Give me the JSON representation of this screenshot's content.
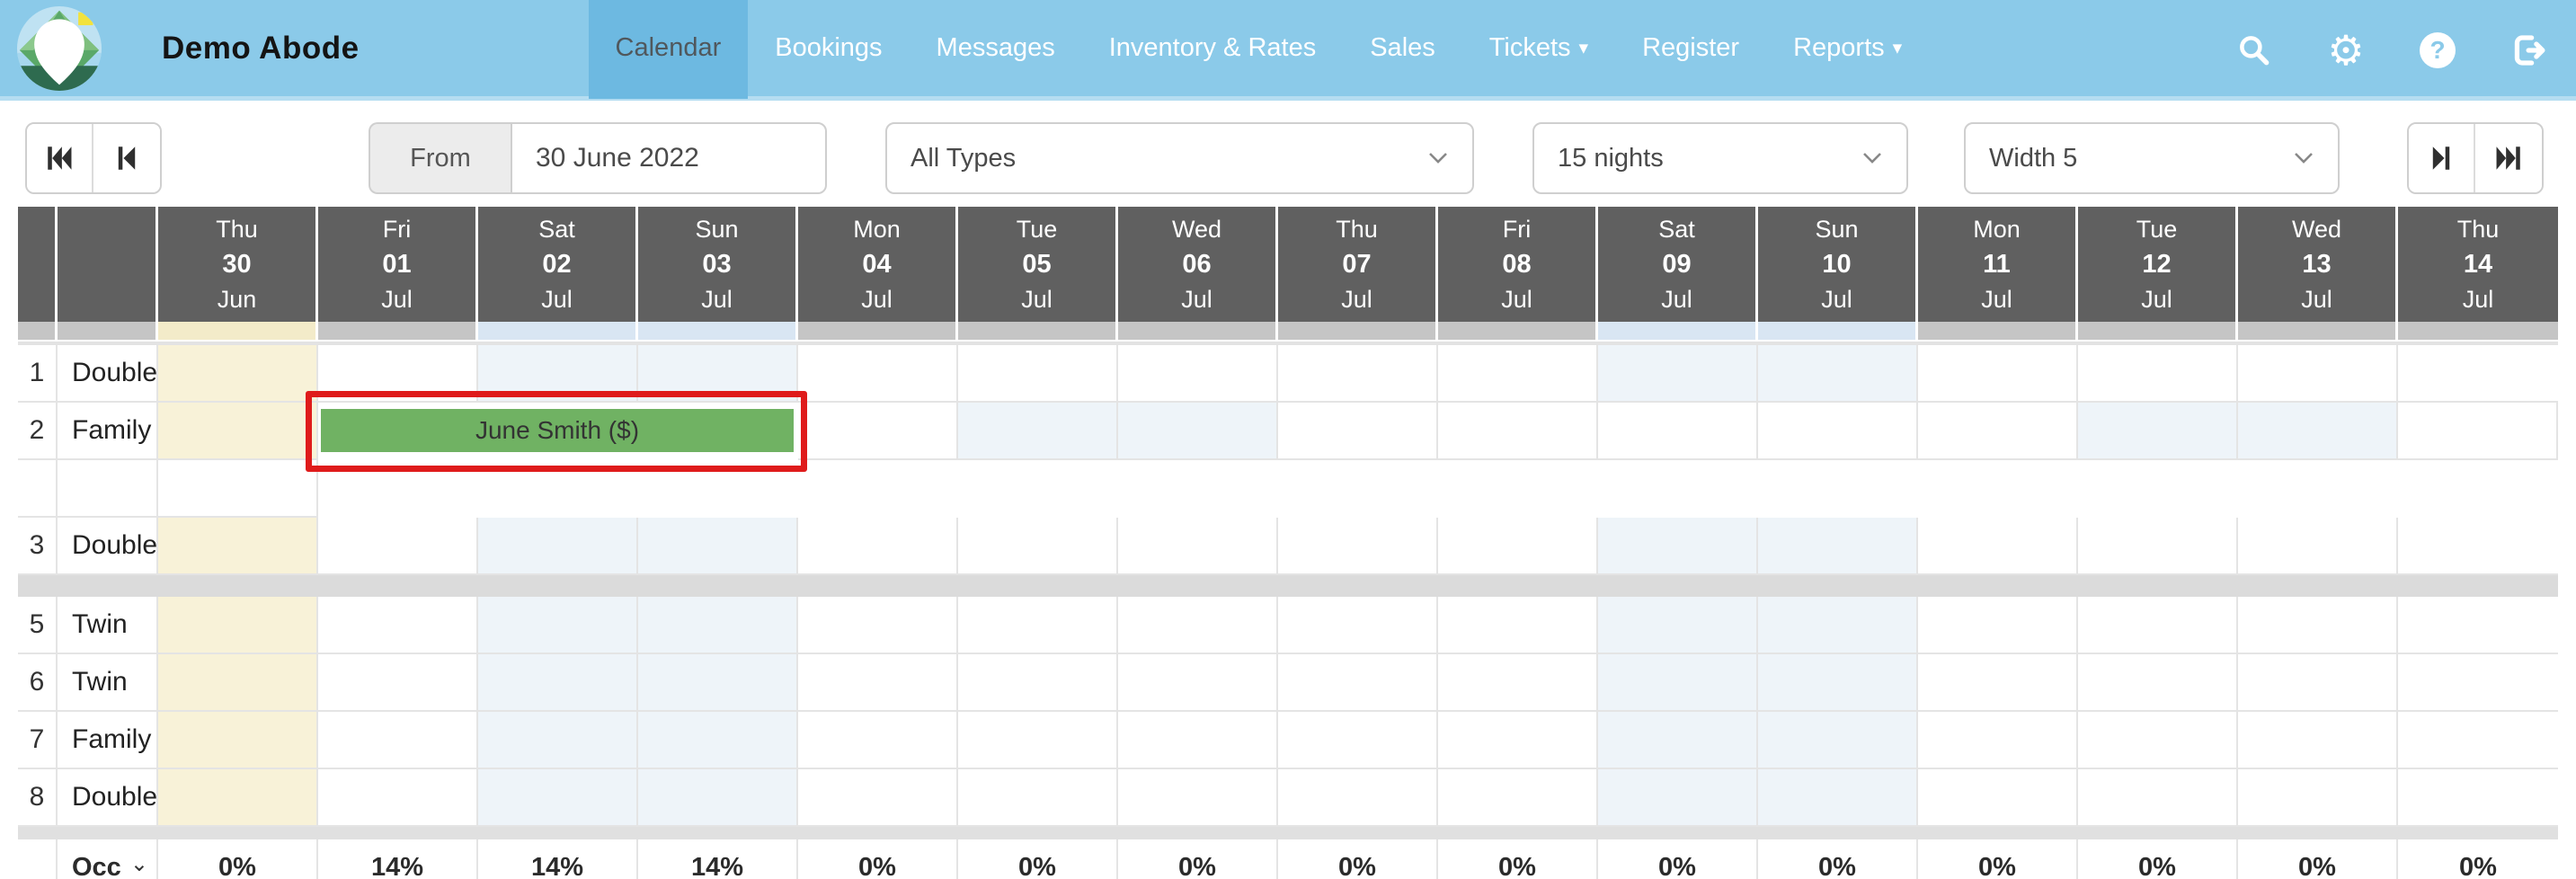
{
  "app": {
    "title": "Demo Abode"
  },
  "nav": {
    "items": [
      {
        "label": "Calendar",
        "active": true,
        "caret": false
      },
      {
        "label": "Bookings",
        "active": false,
        "caret": false
      },
      {
        "label": "Messages",
        "active": false,
        "caret": false
      },
      {
        "label": "Inventory & Rates",
        "active": false,
        "caret": false
      },
      {
        "label": "Sales",
        "active": false,
        "caret": false
      },
      {
        "label": "Tickets",
        "active": false,
        "caret": true
      },
      {
        "label": "Register",
        "active": false,
        "caret": false
      },
      {
        "label": "Reports",
        "active": false,
        "caret": true
      }
    ],
    "icons": [
      {
        "name": "search-icon"
      },
      {
        "name": "gear-icon"
      },
      {
        "name": "help-icon",
        "glyph": "?"
      },
      {
        "name": "logout-icon"
      }
    ]
  },
  "toolbar": {
    "from_label": "From",
    "from_value": "30 June 2022",
    "type_filter_value": "All Types",
    "nights_filter_value": "15 nights",
    "width_filter_value": "Width 5"
  },
  "calendar": {
    "days": [
      {
        "dow": "Thu",
        "date": "30",
        "month": "Jun",
        "shade": "highlight"
      },
      {
        "dow": "Fri",
        "date": "01",
        "month": "Jul",
        "shade": "none"
      },
      {
        "dow": "Sat",
        "date": "02",
        "month": "Jul",
        "shade": "weekend"
      },
      {
        "dow": "Sun",
        "date": "03",
        "month": "Jul",
        "shade": "weekend"
      },
      {
        "dow": "Mon",
        "date": "04",
        "month": "Jul",
        "shade": "none"
      },
      {
        "dow": "Tue",
        "date": "05",
        "month": "Jul",
        "shade": "none"
      },
      {
        "dow": "Wed",
        "date": "06",
        "month": "Jul",
        "shade": "none"
      },
      {
        "dow": "Thu",
        "date": "07",
        "month": "Jul",
        "shade": "none"
      },
      {
        "dow": "Fri",
        "date": "08",
        "month": "Jul",
        "shade": "none"
      },
      {
        "dow": "Sat",
        "date": "09",
        "month": "Jul",
        "shade": "weekend"
      },
      {
        "dow": "Sun",
        "date": "10",
        "month": "Jul",
        "shade": "weekend"
      },
      {
        "dow": "Mon",
        "date": "11",
        "month": "Jul",
        "shade": "none"
      },
      {
        "dow": "Tue",
        "date": "12",
        "month": "Jul",
        "shade": "none"
      },
      {
        "dow": "Wed",
        "date": "13",
        "month": "Jul",
        "shade": "none"
      },
      {
        "dow": "Thu",
        "date": "14",
        "month": "Jul",
        "shade": "none"
      }
    ],
    "room_groups": [
      {
        "rooms": [
          {
            "number": "1",
            "type": "Double"
          },
          {
            "number": "2",
            "type": "Family"
          },
          {
            "number": "3",
            "type": "Double"
          }
        ]
      },
      {
        "rooms": [
          {
            "number": "5",
            "type": "Twin"
          },
          {
            "number": "6",
            "type": "Twin"
          },
          {
            "number": "7",
            "type": "Family"
          },
          {
            "number": "8",
            "type": "Double"
          }
        ]
      }
    ],
    "booking": {
      "guest_label": "June Smith ($)",
      "room_number": "2",
      "start_day_index": 1,
      "nights": 3,
      "bar_color": "#70b263",
      "annotation_color": "#df1b1b"
    },
    "occupancy": {
      "label": "Occ",
      "values": [
        "0%",
        "14%",
        "14%",
        "14%",
        "0%",
        "0%",
        "0%",
        "0%",
        "0%",
        "0%",
        "0%",
        "0%",
        "0%",
        "0%",
        "0%"
      ]
    }
  },
  "colors": {
    "navbar": "#8bcae9",
    "navbar_active": "#6db9e1",
    "header_gray": "#606060",
    "highlight_column": "#f8f2d8",
    "weekend_column": "#eef4f9"
  }
}
